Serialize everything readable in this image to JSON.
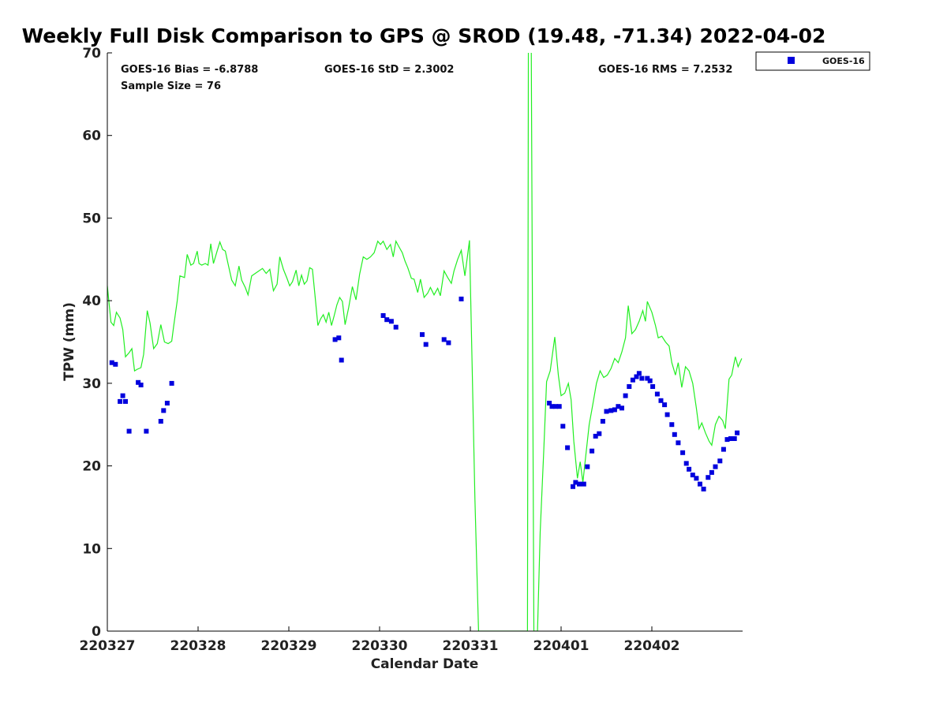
{
  "chart_data": {
    "type": "scatter",
    "title": "Weekly Full Disk Comparison to GPS @ SROD (19.48, -71.34) 2022-04-02",
    "xlabel": "Calendar Date",
    "ylabel": "TPW (mm)",
    "xlim": [
      0,
      7
    ],
    "ylim": [
      0,
      70
    ],
    "x_tick_values": [
      0,
      1,
      2,
      3,
      4,
      5,
      6
    ],
    "x_tick_labels": [
      "220327",
      "220328",
      "220329",
      "220330",
      "220331",
      "220401",
      "220402"
    ],
    "y_tick_values": [
      0,
      10,
      20,
      30,
      40,
      50,
      60,
      70
    ],
    "y_tick_labels": [
      "0",
      "10",
      "20",
      "30",
      "40",
      "50",
      "60",
      "70"
    ],
    "stats": {
      "bias": "GOES-16 Bias = -6.8788",
      "std": "GOES-16 StD = 2.3002",
      "rms": "GOES-16 RMS = 7.2532",
      "sample": "Sample Size = 76"
    },
    "legend": {
      "label": "GOES-16",
      "placement": "top-right, outside plot"
    },
    "colors": {
      "goes": "#0000dd",
      "gps": "#22ee22"
    },
    "series": [
      {
        "name": "GOES-16",
        "marker": "square",
        "points": [
          [
            0.05,
            32.5
          ],
          [
            0.09,
            32.3
          ],
          [
            0.14,
            27.8
          ],
          [
            0.17,
            28.5
          ],
          [
            0.2,
            27.8
          ],
          [
            0.24,
            24.2
          ],
          [
            0.34,
            30.1
          ],
          [
            0.37,
            29.8
          ],
          [
            0.43,
            24.2
          ],
          [
            0.59,
            25.4
          ],
          [
            0.62,
            26.7
          ],
          [
            0.66,
            27.6
          ],
          [
            0.71,
            30.0
          ],
          [
            2.51,
            35.3
          ],
          [
            2.55,
            35.5
          ],
          [
            2.58,
            32.8
          ],
          [
            3.04,
            38.2
          ],
          [
            3.08,
            37.7
          ],
          [
            3.13,
            37.5
          ],
          [
            3.18,
            36.8
          ],
          [
            3.47,
            35.9
          ],
          [
            3.51,
            34.7
          ],
          [
            3.71,
            35.3
          ],
          [
            3.76,
            34.9
          ],
          [
            3.9,
            40.2
          ],
          [
            4.87,
            27.6
          ],
          [
            4.9,
            27.2
          ],
          [
            4.94,
            27.2
          ],
          [
            4.98,
            27.2
          ],
          [
            5.02,
            24.8
          ],
          [
            5.07,
            22.2
          ],
          [
            5.13,
            17.5
          ],
          [
            5.16,
            18.0
          ],
          [
            5.2,
            17.8
          ],
          [
            5.25,
            17.8
          ],
          [
            5.29,
            19.9
          ],
          [
            5.34,
            21.8
          ],
          [
            5.38,
            23.6
          ],
          [
            5.42,
            23.9
          ],
          [
            5.46,
            25.4
          ],
          [
            5.5,
            26.6
          ],
          [
            5.55,
            26.7
          ],
          [
            5.59,
            26.8
          ],
          [
            5.63,
            27.2
          ],
          [
            5.67,
            27.0
          ],
          [
            5.71,
            28.5
          ],
          [
            5.75,
            29.6
          ],
          [
            5.79,
            30.4
          ],
          [
            5.83,
            30.8
          ],
          [
            5.86,
            31.2
          ],
          [
            5.89,
            30.6
          ],
          [
            5.95,
            30.6
          ],
          [
            5.98,
            30.3
          ],
          [
            6.01,
            29.6
          ],
          [
            6.06,
            28.7
          ],
          [
            6.1,
            27.9
          ],
          [
            6.14,
            27.4
          ],
          [
            6.17,
            26.2
          ],
          [
            6.22,
            25.0
          ],
          [
            6.25,
            23.8
          ],
          [
            6.29,
            22.8
          ],
          [
            6.34,
            21.6
          ],
          [
            6.38,
            20.3
          ],
          [
            6.41,
            19.6
          ],
          [
            6.45,
            18.9
          ],
          [
            6.49,
            18.5
          ],
          [
            6.53,
            17.8
          ],
          [
            6.57,
            17.2
          ],
          [
            6.62,
            18.6
          ],
          [
            6.66,
            19.2
          ],
          [
            6.7,
            19.9
          ],
          [
            6.75,
            20.6
          ],
          [
            6.79,
            22.0
          ],
          [
            6.83,
            23.2
          ],
          [
            6.87,
            23.3
          ],
          [
            6.91,
            23.3
          ],
          [
            6.94,
            24.0
          ]
        ]
      },
      {
        "name": "GPS",
        "marker": "line",
        "points": [
          [
            0.0,
            41.8
          ],
          [
            0.04,
            37.4
          ],
          [
            0.07,
            37.0
          ],
          [
            0.1,
            38.6
          ],
          [
            0.14,
            37.9
          ],
          [
            0.17,
            36.5
          ],
          [
            0.2,
            33.2
          ],
          [
            0.24,
            33.7
          ],
          [
            0.27,
            34.2
          ],
          [
            0.3,
            31.5
          ],
          [
            0.33,
            31.7
          ],
          [
            0.37,
            31.9
          ],
          [
            0.4,
            33.5
          ],
          [
            0.44,
            38.8
          ],
          [
            0.47,
            37.3
          ],
          [
            0.51,
            34.2
          ],
          [
            0.55,
            34.8
          ],
          [
            0.59,
            37.1
          ],
          [
            0.63,
            35.0
          ],
          [
            0.67,
            34.8
          ],
          [
            0.71,
            35.1
          ],
          [
            0.73,
            36.8
          ],
          [
            0.77,
            40.0
          ],
          [
            0.8,
            43.0
          ],
          [
            0.85,
            42.8
          ],
          [
            0.88,
            45.6
          ],
          [
            0.92,
            44.3
          ],
          [
            0.95,
            44.5
          ],
          [
            0.99,
            46.0
          ],
          [
            1.01,
            44.5
          ],
          [
            1.04,
            44.3
          ],
          [
            1.08,
            44.5
          ],
          [
            1.11,
            44.3
          ],
          [
            1.14,
            46.9
          ],
          [
            1.17,
            44.5
          ],
          [
            1.21,
            46.0
          ],
          [
            1.24,
            47.1
          ],
          [
            1.27,
            46.2
          ],
          [
            1.3,
            46.0
          ],
          [
            1.33,
            44.5
          ],
          [
            1.37,
            42.5
          ],
          [
            1.41,
            41.8
          ],
          [
            1.45,
            44.2
          ],
          [
            1.48,
            42.5
          ],
          [
            1.52,
            41.6
          ],
          [
            1.55,
            40.7
          ],
          [
            1.59,
            43.0
          ],
          [
            1.63,
            43.3
          ],
          [
            1.67,
            43.6
          ],
          [
            1.71,
            43.9
          ],
          [
            1.75,
            43.3
          ],
          [
            1.79,
            43.8
          ],
          [
            1.83,
            41.2
          ],
          [
            1.87,
            42.0
          ],
          [
            1.9,
            45.3
          ],
          [
            1.94,
            43.8
          ],
          [
            1.98,
            42.7
          ],
          [
            2.01,
            41.8
          ],
          [
            2.04,
            42.3
          ],
          [
            2.08,
            43.7
          ],
          [
            2.11,
            41.8
          ],
          [
            2.14,
            43.1
          ],
          [
            2.17,
            42.0
          ],
          [
            2.2,
            42.4
          ],
          [
            2.23,
            44.0
          ],
          [
            2.26,
            43.8
          ],
          [
            2.29,
            40.5
          ],
          [
            2.32,
            37.0
          ],
          [
            2.35,
            37.8
          ],
          [
            2.38,
            38.3
          ],
          [
            2.41,
            37.4
          ],
          [
            2.44,
            38.6
          ],
          [
            2.47,
            37.0
          ],
          [
            2.5,
            38.2
          ],
          [
            2.53,
            39.5
          ],
          [
            2.56,
            40.4
          ],
          [
            2.59,
            39.9
          ],
          [
            2.62,
            37.1
          ],
          [
            2.66,
            39.2
          ],
          [
            2.7,
            41.7
          ],
          [
            2.74,
            40.1
          ],
          [
            2.78,
            43.2
          ],
          [
            2.82,
            45.3
          ],
          [
            2.86,
            45.0
          ],
          [
            2.9,
            45.3
          ],
          [
            2.94,
            45.8
          ],
          [
            2.98,
            47.2
          ],
          [
            3.01,
            46.8
          ],
          [
            3.04,
            47.2
          ],
          [
            3.08,
            46.2
          ],
          [
            3.12,
            46.8
          ],
          [
            3.15,
            45.3
          ],
          [
            3.18,
            47.2
          ],
          [
            3.21,
            46.6
          ],
          [
            3.25,
            45.8
          ],
          [
            3.28,
            44.8
          ],
          [
            3.31,
            44.0
          ],
          [
            3.35,
            42.7
          ],
          [
            3.38,
            42.6
          ],
          [
            3.42,
            41.0
          ],
          [
            3.45,
            42.6
          ],
          [
            3.49,
            40.4
          ],
          [
            3.53,
            40.9
          ],
          [
            3.56,
            41.6
          ],
          [
            3.6,
            40.7
          ],
          [
            3.64,
            41.5
          ],
          [
            3.67,
            40.6
          ],
          [
            3.71,
            43.6
          ],
          [
            3.75,
            42.8
          ],
          [
            3.79,
            42.1
          ],
          [
            3.82,
            43.6
          ],
          [
            3.86,
            45.0
          ],
          [
            3.9,
            46.1
          ],
          [
            3.94,
            43.0
          ],
          [
            3.97,
            45.5
          ],
          [
            3.99,
            47.3
          ],
          [
            4.02,
            32.0
          ],
          [
            4.05,
            16.0
          ],
          [
            4.09,
            0.0
          ],
          [
            4.63,
            0.0
          ],
          [
            4.64,
            75.0
          ],
          [
            4.67,
            75.0
          ],
          [
            4.7,
            0.0
          ],
          [
            4.74,
            0.0
          ],
          [
            4.77,
            12.0
          ],
          [
            4.81,
            22.0
          ],
          [
            4.84,
            30.2
          ],
          [
            4.88,
            31.5
          ],
          [
            4.93,
            35.6
          ],
          [
            4.97,
            31.0
          ],
          [
            5.0,
            28.5
          ],
          [
            5.04,
            28.8
          ],
          [
            5.08,
            30.0
          ],
          [
            5.11,
            28.0
          ],
          [
            5.14,
            23.0
          ],
          [
            5.18,
            18.5
          ],
          [
            5.21,
            20.5
          ],
          [
            5.24,
            18.0
          ],
          [
            5.27,
            21.0
          ],
          [
            5.31,
            25.0
          ],
          [
            5.35,
            27.5
          ],
          [
            5.39,
            30.0
          ],
          [
            5.43,
            31.5
          ],
          [
            5.47,
            30.7
          ],
          [
            5.51,
            31.0
          ],
          [
            5.55,
            31.8
          ],
          [
            5.59,
            33.0
          ],
          [
            5.63,
            32.5
          ],
          [
            5.67,
            33.8
          ],
          [
            5.71,
            35.5
          ],
          [
            5.74,
            39.4
          ],
          [
            5.78,
            36.0
          ],
          [
            5.82,
            36.5
          ],
          [
            5.86,
            37.5
          ],
          [
            5.9,
            38.8
          ],
          [
            5.93,
            37.5
          ],
          [
            5.95,
            39.9
          ],
          [
            6.0,
            38.6
          ],
          [
            6.04,
            37.0
          ],
          [
            6.07,
            35.5
          ],
          [
            6.11,
            35.7
          ],
          [
            6.15,
            35.0
          ],
          [
            6.19,
            34.5
          ],
          [
            6.22,
            32.5
          ],
          [
            6.26,
            31.0
          ],
          [
            6.29,
            32.5
          ],
          [
            6.33,
            29.5
          ],
          [
            6.37,
            32.0
          ],
          [
            6.41,
            31.5
          ],
          [
            6.45,
            30.0
          ],
          [
            6.49,
            27.0
          ],
          [
            6.52,
            24.5
          ],
          [
            6.55,
            25.2
          ],
          [
            6.59,
            24.0
          ],
          [
            6.63,
            23.0
          ],
          [
            6.66,
            22.5
          ],
          [
            6.7,
            25.0
          ],
          [
            6.74,
            26.0
          ],
          [
            6.78,
            25.5
          ],
          [
            6.81,
            24.5
          ],
          [
            6.85,
            30.5
          ],
          [
            6.88,
            31.0
          ],
          [
            6.92,
            33.2
          ],
          [
            6.95,
            32.0
          ],
          [
            6.99,
            33.0
          ]
        ]
      }
    ]
  }
}
